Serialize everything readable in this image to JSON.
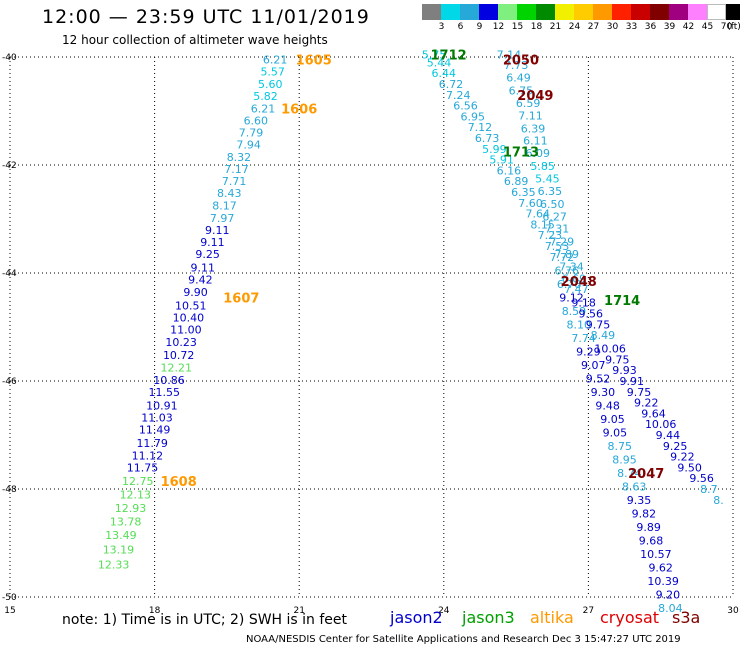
{
  "header": {
    "title": "12:00 — 23:59 UTC 11/01/2019",
    "subtitle": "12 hour collection of altimeter wave heights"
  },
  "legend": {
    "unit": "(ft)",
    "bins": [
      {
        "label": "3",
        "color": "#7f7f7f"
      },
      {
        "label": "6",
        "color": "#00d8e8"
      },
      {
        "label": "9",
        "color": "#26a8d8"
      },
      {
        "label": "12",
        "color": "#0000e0"
      },
      {
        "label": "15",
        "color": "#7ff07f"
      },
      {
        "label": "18",
        "color": "#00d400"
      },
      {
        "label": "21",
        "color": "#008a00"
      },
      {
        "label": "24",
        "color": "#f0f000"
      },
      {
        "label": "27",
        "color": "#ffcc00"
      },
      {
        "label": "30",
        "color": "#ff9900"
      },
      {
        "label": "33",
        "color": "#ff2000"
      },
      {
        "label": "36",
        "color": "#c80000"
      },
      {
        "label": "39",
        "color": "#800000"
      },
      {
        "label": "42",
        "color": "#a0007f"
      },
      {
        "label": "45",
        "color": "#ff80ff"
      },
      {
        "label": "70",
        "color": "#ffffff"
      },
      {
        "label": "",
        "color": "#000000"
      }
    ]
  },
  "footer": {
    "note": "note: 1) Time is in UTC; 2) SWH is in feet",
    "satellites": [
      {
        "name": "jason2",
        "color": "#0000cc"
      },
      {
        "name": "jason3",
        "color": "#00a000"
      },
      {
        "name": "altika",
        "color": "#ff9900"
      },
      {
        "name": "cryosat",
        "color": "#e00000"
      },
      {
        "name": "s3a",
        "color": "#800000"
      }
    ],
    "credit": "NOAA/NESDIS Center for Satellite Applications and Research   Dec  3 15:47:27 UTC 2019"
  },
  "chart_data": {
    "type": "scatter",
    "title": "12:00 — 23:59 UTC 11/01/2019",
    "subtitle": "12 hour collection of altimeter wave heights",
    "xlim": [
      15,
      30
    ],
    "ylim": [
      -50,
      -40
    ],
    "xticks": [
      "15",
      "18",
      "21",
      "24",
      "27",
      "30"
    ],
    "yticks": [
      "-40",
      "-42",
      "-44",
      "-46",
      "-48",
      "-50"
    ],
    "grid": true,
    "colors": {
      "c": "#00c8e0",
      "l": "#26a8d8",
      "b": "#0000cc",
      "g": "#55dd55",
      "o": "#ff9900",
      "d": "#800000",
      "n": "#007a00"
    },
    "track_labels": [
      {
        "text": "1605",
        "x": 21.3,
        "y": -40.05,
        "c": "o"
      },
      {
        "text": "1606",
        "x": 21.0,
        "y": -40.95,
        "c": "o"
      },
      {
        "text": "1607",
        "x": 19.8,
        "y": -44.45,
        "c": "o"
      },
      {
        "text": "1608",
        "x": 18.5,
        "y": -47.85,
        "c": "o"
      },
      {
        "text": "1712",
        "x": 24.1,
        "y": -39.95,
        "c": "n"
      },
      {
        "text": "1713",
        "x": 25.6,
        "y": -41.75,
        "c": "n"
      },
      {
        "text": "1714",
        "x": 27.7,
        "y": -44.5,
        "c": "n"
      },
      {
        "text": "2050",
        "x": 25.6,
        "y": -40.05,
        "c": "d"
      },
      {
        "text": "2049",
        "x": 25.9,
        "y": -40.7,
        "c": "d"
      },
      {
        "text": "2048",
        "x": 26.8,
        "y": -44.15,
        "c": "d"
      },
      {
        "text": "2047",
        "x": 28.2,
        "y": -47.7,
        "c": "d"
      }
    ],
    "points": [
      {
        "x": 20.5,
        "y": -40.05,
        "v": "6.21",
        "c": "l"
      },
      {
        "x": 20.45,
        "y": -40.27,
        "v": "5.57",
        "c": "c"
      },
      {
        "x": 20.4,
        "y": -40.5,
        "v": "5.60",
        "c": "c"
      },
      {
        "x": 20.3,
        "y": -40.72,
        "v": "5.82",
        "c": "c"
      },
      {
        "x": 20.25,
        "y": -40.95,
        "v": "6.21",
        "c": "l"
      },
      {
        "x": 20.1,
        "y": -41.18,
        "v": "6.60",
        "c": "l"
      },
      {
        "x": 20.0,
        "y": -41.4,
        "v": "7.79",
        "c": "l"
      },
      {
        "x": 19.95,
        "y": -41.62,
        "v": "7.94",
        "c": "l"
      },
      {
        "x": 19.75,
        "y": -41.85,
        "v": "8.32",
        "c": "l"
      },
      {
        "x": 19.7,
        "y": -42.07,
        "v": "7.17",
        "c": "l"
      },
      {
        "x": 19.65,
        "y": -42.3,
        "v": "7.71",
        "c": "l"
      },
      {
        "x": 19.55,
        "y": -42.52,
        "v": "8.43",
        "c": "l"
      },
      {
        "x": 19.45,
        "y": -42.75,
        "v": "8.17",
        "c": "l"
      },
      {
        "x": 19.4,
        "y": -42.98,
        "v": "7.97",
        "c": "l"
      },
      {
        "x": 19.3,
        "y": -43.2,
        "v": "9.11",
        "c": "b"
      },
      {
        "x": 19.2,
        "y": -43.43,
        "v": "9.11",
        "c": "b"
      },
      {
        "x": 19.1,
        "y": -43.65,
        "v": "9.25",
        "c": "b"
      },
      {
        "x": 19.0,
        "y": -43.9,
        "v": "9.11",
        "c": "b"
      },
      {
        "x": 18.95,
        "y": -44.12,
        "v": "9.42",
        "c": "b"
      },
      {
        "x": 18.85,
        "y": -44.35,
        "v": "9.90",
        "c": "b"
      },
      {
        "x": 18.75,
        "y": -44.6,
        "v": "10.51",
        "c": "b"
      },
      {
        "x": 18.7,
        "y": -44.82,
        "v": "10.40",
        "c": "b"
      },
      {
        "x": 18.65,
        "y": -45.05,
        "v": "11.00",
        "c": "b"
      },
      {
        "x": 18.55,
        "y": -45.28,
        "v": "10.23",
        "c": "b"
      },
      {
        "x": 18.5,
        "y": -45.52,
        "v": "10.72",
        "c": "b"
      },
      {
        "x": 18.45,
        "y": -45.75,
        "v": "12.21",
        "c": "g"
      },
      {
        "x": 18.3,
        "y": -45.98,
        "v": "10.86",
        "c": "b"
      },
      {
        "x": 18.2,
        "y": -46.2,
        "v": "11.55",
        "c": "b"
      },
      {
        "x": 18.15,
        "y": -46.45,
        "v": "10.91",
        "c": "b"
      },
      {
        "x": 18.05,
        "y": -46.68,
        "v": "11.03",
        "c": "b"
      },
      {
        "x": 18.0,
        "y": -46.9,
        "v": "11.49",
        "c": "b"
      },
      {
        "x": 17.95,
        "y": -47.15,
        "v": "11.79",
        "c": "b"
      },
      {
        "x": 17.85,
        "y": -47.38,
        "v": "11.12",
        "c": "b"
      },
      {
        "x": 17.75,
        "y": -47.6,
        "v": "11.75",
        "c": "b"
      },
      {
        "x": 17.65,
        "y": -47.85,
        "v": "12.75",
        "c": "g"
      },
      {
        "x": 17.6,
        "y": -48.1,
        "v": "12.13",
        "c": "g"
      },
      {
        "x": 17.5,
        "y": -48.35,
        "v": "12.93",
        "c": "g"
      },
      {
        "x": 17.4,
        "y": -48.6,
        "v": "13.78",
        "c": "g"
      },
      {
        "x": 17.3,
        "y": -48.85,
        "v": "13.49",
        "c": "g"
      },
      {
        "x": 17.25,
        "y": -49.12,
        "v": "13.19",
        "c": "g"
      },
      {
        "x": 17.15,
        "y": -49.4,
        "v": "12.33",
        "c": "g"
      },
      {
        "x": 23.8,
        "y": -39.95,
        "v": "5.75",
        "c": "c"
      },
      {
        "x": 23.9,
        "y": -40.1,
        "v": "5.44",
        "c": "c"
      },
      {
        "x": 24.0,
        "y": -40.3,
        "v": "6.44",
        "c": "c"
      },
      {
        "x": 24.15,
        "y": -40.5,
        "v": "6.72",
        "c": "l"
      },
      {
        "x": 24.3,
        "y": -40.7,
        "v": "7.24",
        "c": "l"
      },
      {
        "x": 24.45,
        "y": -40.9,
        "v": "6.56",
        "c": "l"
      },
      {
        "x": 24.6,
        "y": -41.1,
        "v": "6.95",
        "c": "l"
      },
      {
        "x": 24.75,
        "y": -41.3,
        "v": "7.12",
        "c": "l"
      },
      {
        "x": 24.9,
        "y": -41.5,
        "v": "6.73",
        "c": "l"
      },
      {
        "x": 25.05,
        "y": -41.7,
        "v": "5.99",
        "c": "c"
      },
      {
        "x": 25.2,
        "y": -41.9,
        "v": "5.91",
        "c": "c"
      },
      {
        "x": 25.35,
        "y": -42.1,
        "v": "6.16",
        "c": "l"
      },
      {
        "x": 25.5,
        "y": -42.3,
        "v": "6.89",
        "c": "l"
      },
      {
        "x": 25.65,
        "y": -42.5,
        "v": "6.35",
        "c": "l"
      },
      {
        "x": 25.8,
        "y": -42.7,
        "v": "7.60",
        "c": "l"
      },
      {
        "x": 25.95,
        "y": -42.9,
        "v": "7.64",
        "c": "l"
      },
      {
        "x": 26.05,
        "y": -43.1,
        "v": "8.15",
        "c": "l"
      },
      {
        "x": 26.2,
        "y": -43.3,
        "v": "7.23",
        "c": "l"
      },
      {
        "x": 26.35,
        "y": -43.5,
        "v": "7.53",
        "c": "l"
      },
      {
        "x": 26.45,
        "y": -43.7,
        "v": "7.72",
        "c": "l"
      },
      {
        "x": 26.55,
        "y": -43.95,
        "v": "6.76",
        "c": "l"
      },
      {
        "x": 26.6,
        "y": -44.2,
        "v": "6.78",
        "c": "l"
      },
      {
        "x": 26.65,
        "y": -44.45,
        "v": "9.12",
        "c": "b"
      },
      {
        "x": 26.7,
        "y": -44.7,
        "v": "8.59",
        "c": "l"
      },
      {
        "x": 26.8,
        "y": -44.95,
        "v": "8.10",
        "c": "l"
      },
      {
        "x": 26.9,
        "y": -45.2,
        "v": "7.74",
        "c": "l"
      },
      {
        "x": 27.0,
        "y": -45.45,
        "v": "9.29",
        "c": "b"
      },
      {
        "x": 27.1,
        "y": -45.7,
        "v": "9.07",
        "c": "b"
      },
      {
        "x": 27.2,
        "y": -45.95,
        "v": "9.52",
        "c": "b"
      },
      {
        "x": 27.3,
        "y": -46.2,
        "v": "9.30",
        "c": "b"
      },
      {
        "x": 27.4,
        "y": -46.45,
        "v": "9.48",
        "c": "b"
      },
      {
        "x": 27.5,
        "y": -46.7,
        "v": "9.05",
        "c": "b"
      },
      {
        "x": 27.55,
        "y": -46.95,
        "v": "9.05",
        "c": "b"
      },
      {
        "x": 27.65,
        "y": -47.2,
        "v": "8.75",
        "c": "l"
      },
      {
        "x": 27.75,
        "y": -47.45,
        "v": "8.95",
        "c": "l"
      },
      {
        "x": 27.85,
        "y": -47.7,
        "v": "8.74",
        "c": "l"
      },
      {
        "x": 27.95,
        "y": -47.95,
        "v": "8.63",
        "c": "l"
      },
      {
        "x": 28.05,
        "y": -48.2,
        "v": "9.35",
        "c": "b"
      },
      {
        "x": 28.15,
        "y": -48.45,
        "v": "9.82",
        "c": "b"
      },
      {
        "x": 28.25,
        "y": -48.7,
        "v": "9.89",
        "c": "b"
      },
      {
        "x": 28.3,
        "y": -48.95,
        "v": "9.68",
        "c": "b"
      },
      {
        "x": 28.4,
        "y": -49.2,
        "v": "10.57",
        "c": "b"
      },
      {
        "x": 28.5,
        "y": -49.45,
        "v": "9.62",
        "c": "b"
      },
      {
        "x": 28.55,
        "y": -49.7,
        "v": "10.39",
        "c": "b"
      },
      {
        "x": 28.65,
        "y": -49.95,
        "v": "9.20",
        "c": "b"
      },
      {
        "x": 28.7,
        "y": -50.2,
        "v": "8.04",
        "c": "l"
      },
      {
        "x": 25.35,
        "y": -39.95,
        "v": "7.14",
        "c": "l"
      },
      {
        "x": 25.5,
        "y": -40.15,
        "v": "7.73",
        "c": "l"
      },
      {
        "x": 25.55,
        "y": -40.38,
        "v": "6.49",
        "c": "l"
      },
      {
        "x": 25.6,
        "y": -40.62,
        "v": "6.75",
        "c": "l"
      },
      {
        "x": 25.75,
        "y": -40.85,
        "v": "6.59",
        "c": "l"
      },
      {
        "x": 25.8,
        "y": -41.08,
        "v": "7.11",
        "c": "l"
      },
      {
        "x": 25.85,
        "y": -41.32,
        "v": "6.39",
        "c": "l"
      },
      {
        "x": 25.9,
        "y": -41.55,
        "v": "6.11",
        "c": "l"
      },
      {
        "x": 25.95,
        "y": -41.78,
        "v": "6.09",
        "c": "l"
      },
      {
        "x": 26.05,
        "y": -42.02,
        "v": "5.85",
        "c": "c"
      },
      {
        "x": 26.15,
        "y": -42.25,
        "v": "5.45",
        "c": "c"
      },
      {
        "x": 26.2,
        "y": -42.48,
        "v": "6.35",
        "c": "l"
      },
      {
        "x": 26.25,
        "y": -42.72,
        "v": "6.50",
        "c": "l"
      },
      {
        "x": 26.3,
        "y": -42.95,
        "v": "6.27",
        "c": "l"
      },
      {
        "x": 26.35,
        "y": -43.18,
        "v": "7.31",
        "c": "l"
      },
      {
        "x": 26.45,
        "y": -43.42,
        "v": "7.29",
        "c": "l"
      },
      {
        "x": 26.55,
        "y": -43.65,
        "v": "7.89",
        "c": "l"
      },
      {
        "x": 26.65,
        "y": -43.88,
        "v": "7.34",
        "c": "l"
      },
      {
        "x": 26.7,
        "y": -44.1,
        "v": "6.69",
        "c": "l"
      },
      {
        "x": 26.75,
        "y": -44.3,
        "v": "7.47",
        "c": "l"
      },
      {
        "x": 26.9,
        "y": -44.55,
        "v": "9.18",
        "c": "b"
      },
      {
        "x": 27.05,
        "y": -44.75,
        "v": "9.56",
        "c": "b"
      },
      {
        "x": 27.2,
        "y": -44.95,
        "v": "9.75",
        "c": "b"
      },
      {
        "x": 27.3,
        "y": -45.15,
        "v": "8.49",
        "c": "l"
      },
      {
        "x": 27.45,
        "y": -45.4,
        "v": "10.06",
        "c": "b"
      },
      {
        "x": 27.6,
        "y": -45.6,
        "v": "9.75",
        "c": "b"
      },
      {
        "x": 27.75,
        "y": -45.8,
        "v": "9.93",
        "c": "b"
      },
      {
        "x": 27.9,
        "y": -46.0,
        "v": "9.91",
        "c": "b"
      },
      {
        "x": 28.05,
        "y": -46.2,
        "v": "9.75",
        "c": "b"
      },
      {
        "x": 28.2,
        "y": -46.4,
        "v": "9.22",
        "c": "b"
      },
      {
        "x": 28.35,
        "y": -46.6,
        "v": "9.64",
        "c": "b"
      },
      {
        "x": 28.5,
        "y": -46.8,
        "v": "10.06",
        "c": "b"
      },
      {
        "x": 28.65,
        "y": -47.0,
        "v": "9.44",
        "c": "b"
      },
      {
        "x": 28.8,
        "y": -47.2,
        "v": "9.25",
        "c": "b"
      },
      {
        "x": 28.95,
        "y": -47.4,
        "v": "9.22",
        "c": "b"
      },
      {
        "x": 29.1,
        "y": -47.6,
        "v": "9.50",
        "c": "b"
      },
      {
        "x": 29.35,
        "y": -47.8,
        "v": "9.56",
        "c": "b"
      },
      {
        "x": 29.5,
        "y": -48.0,
        "v": "8.7",
        "c": "l"
      },
      {
        "x": 29.7,
        "y": -48.2,
        "v": "8.",
        "c": "l"
      }
    ]
  }
}
